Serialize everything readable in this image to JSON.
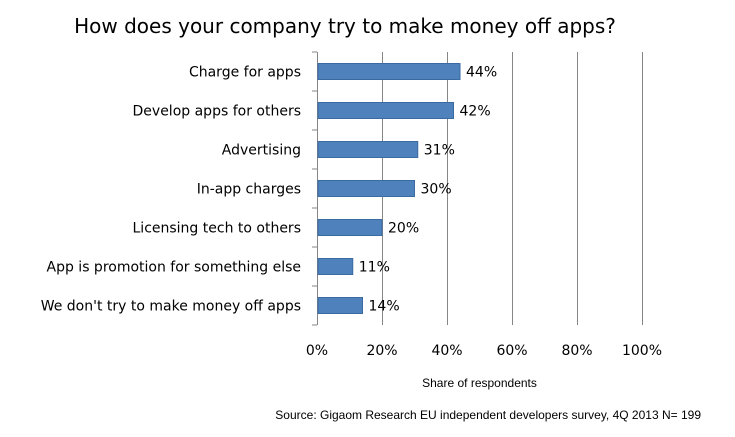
{
  "chart_data": {
    "type": "bar",
    "orientation": "horizontal",
    "title": "How does your company try to make money off apps?",
    "categories": [
      "Charge for apps",
      "Develop apps for others",
      "Advertising",
      "In-app charges",
      "Licensing tech to others",
      "App is promotion for something else",
      "We don't try to make money off apps"
    ],
    "values": [
      44,
      42,
      31,
      30,
      20,
      11,
      14
    ],
    "value_labels": [
      "44%",
      "42%",
      "31%",
      "30%",
      "20%",
      "11%",
      "14%"
    ],
    "xlabel": "Share of respondents",
    "ylabel": "",
    "xlim": [
      0,
      100
    ],
    "x_ticks": [
      0,
      20,
      40,
      60,
      80,
      100
    ],
    "x_tick_labels": [
      "0%",
      "20%",
      "40%",
      "60%",
      "80%",
      "100%"
    ],
    "grid": "vertical",
    "legend": "none",
    "bar_color": "#4f81bd",
    "bar_edge_color": "#3a6aa0",
    "grid_color": "#868686"
  },
  "source": "Source: Gigaom Research EU independent developers survey, 4Q 2013 N= 199"
}
